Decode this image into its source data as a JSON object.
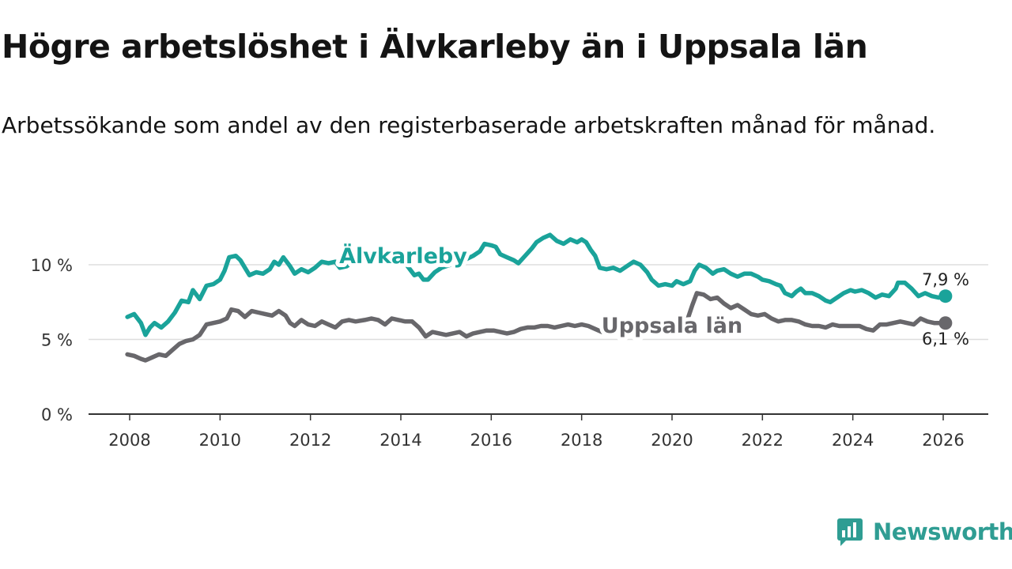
{
  "title": "Högre arbetslöshet i Älvkarleby än i Uppsala län",
  "subtitle": "Arbetssökande som andel av den registerbaserade arbetskraften månad för månad.",
  "brand": {
    "name": "Newsworthy",
    "icon": "newsworthy-logo-icon"
  },
  "colors": {
    "alvkarleby": "#1aa39a",
    "uppsala": "#68676b",
    "grid": "#dddddd",
    "axis": "#333333"
  },
  "chart_data": {
    "type": "line",
    "xlim": [
      2008,
      2026.2
    ],
    "ylim": [
      0,
      12.5
    ],
    "x_ticks": [
      2008,
      2010,
      2012,
      2014,
      2016,
      2018,
      2020,
      2022,
      2024,
      2026
    ],
    "x_tick_labels": [
      "2008",
      "2010",
      "2012",
      "2014",
      "2016",
      "2018",
      "2020",
      "2022",
      "2024",
      "2026"
    ],
    "y_ticks": [
      0,
      5,
      10
    ],
    "y_tick_labels": [
      "0 %",
      "5 %",
      "10 %"
    ],
    "grid": true,
    "series": [
      {
        "name": "Älvkarleby",
        "label": "Älvkarleby",
        "end_label": "7,9 %",
        "points": [
          [
            2007.95,
            6.5
          ],
          [
            2008.1,
            6.7
          ],
          [
            2008.25,
            6.1
          ],
          [
            2008.35,
            5.3
          ],
          [
            2008.45,
            5.8
          ],
          [
            2008.55,
            6.1
          ],
          [
            2008.7,
            5.8
          ],
          [
            2008.85,
            6.2
          ],
          [
            2009.0,
            6.8
          ],
          [
            2009.15,
            7.6
          ],
          [
            2009.3,
            7.5
          ],
          [
            2009.4,
            8.3
          ],
          [
            2009.55,
            7.7
          ],
          [
            2009.7,
            8.6
          ],
          [
            2009.85,
            8.7
          ],
          [
            2010.0,
            9.0
          ],
          [
            2010.1,
            9.6
          ],
          [
            2010.2,
            10.5
          ],
          [
            2010.35,
            10.6
          ],
          [
            2010.45,
            10.3
          ],
          [
            2010.55,
            9.8
          ],
          [
            2010.65,
            9.3
          ],
          [
            2010.8,
            9.5
          ],
          [
            2010.95,
            9.4
          ],
          [
            2011.1,
            9.7
          ],
          [
            2011.2,
            10.2
          ],
          [
            2011.3,
            10.0
          ],
          [
            2011.4,
            10.5
          ],
          [
            2011.55,
            9.9
          ],
          [
            2011.65,
            9.4
          ],
          [
            2011.8,
            9.7
          ],
          [
            2011.95,
            9.5
          ],
          [
            2012.1,
            9.8
          ],
          [
            2012.25,
            10.2
          ],
          [
            2012.4,
            10.1
          ],
          [
            2012.55,
            10.2
          ],
          [
            2012.65,
            9.8
          ],
          [
            2012.8,
            9.9
          ],
          [
            2013.0,
            10.3
          ],
          [
            2013.3,
            10.1
          ],
          [
            2013.6,
            10.2
          ],
          [
            2013.9,
            10.0
          ],
          [
            2014.1,
            10.1
          ],
          [
            2014.2,
            9.7
          ],
          [
            2014.3,
            9.3
          ],
          [
            2014.4,
            9.4
          ],
          [
            2014.5,
            9.0
          ],
          [
            2014.6,
            9.0
          ],
          [
            2014.75,
            9.5
          ],
          [
            2014.9,
            9.8
          ],
          [
            2015.1,
            10.0
          ],
          [
            2015.4,
            10.3
          ],
          [
            2015.6,
            10.6
          ],
          [
            2015.75,
            10.9
          ],
          [
            2015.85,
            11.4
          ],
          [
            2016.0,
            11.3
          ],
          [
            2016.1,
            11.2
          ],
          [
            2016.2,
            10.7
          ],
          [
            2016.35,
            10.5
          ],
          [
            2016.5,
            10.3
          ],
          [
            2016.6,
            10.1
          ],
          [
            2016.75,
            10.6
          ],
          [
            2016.9,
            11.1
          ],
          [
            2017.0,
            11.5
          ],
          [
            2017.15,
            11.8
          ],
          [
            2017.3,
            12.0
          ],
          [
            2017.45,
            11.6
          ],
          [
            2017.6,
            11.4
          ],
          [
            2017.75,
            11.7
          ],
          [
            2017.9,
            11.5
          ],
          [
            2018.0,
            11.7
          ],
          [
            2018.1,
            11.5
          ],
          [
            2018.2,
            11.0
          ],
          [
            2018.3,
            10.6
          ],
          [
            2018.4,
            9.8
          ],
          [
            2018.55,
            9.7
          ],
          [
            2018.7,
            9.8
          ],
          [
            2018.85,
            9.6
          ],
          [
            2019.0,
            9.9
          ],
          [
            2019.15,
            10.2
          ],
          [
            2019.3,
            10.0
          ],
          [
            2019.45,
            9.5
          ],
          [
            2019.55,
            9.0
          ],
          [
            2019.7,
            8.6
          ],
          [
            2019.85,
            8.7
          ],
          [
            2020.0,
            8.6
          ],
          [
            2020.1,
            8.9
          ],
          [
            2020.25,
            8.7
          ],
          [
            2020.4,
            8.9
          ],
          [
            2020.5,
            9.6
          ],
          [
            2020.6,
            10.0
          ],
          [
            2020.75,
            9.8
          ],
          [
            2020.9,
            9.4
          ],
          [
            2021.0,
            9.6
          ],
          [
            2021.15,
            9.7
          ],
          [
            2021.3,
            9.4
          ],
          [
            2021.45,
            9.2
          ],
          [
            2021.6,
            9.4
          ],
          [
            2021.75,
            9.4
          ],
          [
            2021.9,
            9.2
          ],
          [
            2022.0,
            9.0
          ],
          [
            2022.15,
            8.9
          ],
          [
            2022.3,
            8.7
          ],
          [
            2022.4,
            8.6
          ],
          [
            2022.5,
            8.1
          ],
          [
            2022.65,
            7.9
          ],
          [
            2022.75,
            8.2
          ],
          [
            2022.85,
            8.4
          ],
          [
            2022.95,
            8.1
          ],
          [
            2023.1,
            8.1
          ],
          [
            2023.25,
            7.9
          ],
          [
            2023.4,
            7.6
          ],
          [
            2023.5,
            7.5
          ],
          [
            2023.65,
            7.8
          ],
          [
            2023.8,
            8.1
          ],
          [
            2023.95,
            8.3
          ],
          [
            2024.05,
            8.2
          ],
          [
            2024.2,
            8.3
          ],
          [
            2024.35,
            8.1
          ],
          [
            2024.5,
            7.8
          ],
          [
            2024.65,
            8.0
          ],
          [
            2024.8,
            7.9
          ],
          [
            2024.95,
            8.4
          ],
          [
            2025.0,
            8.8
          ],
          [
            2025.15,
            8.8
          ],
          [
            2025.3,
            8.4
          ],
          [
            2025.45,
            7.9
          ],
          [
            2025.6,
            8.1
          ],
          [
            2025.75,
            7.9
          ],
          [
            2025.9,
            7.8
          ],
          [
            2026.05,
            7.9
          ]
        ]
      },
      {
        "name": "Uppsala län",
        "label": "Uppsala län",
        "end_label": "6,1 %",
        "points": [
          [
            2007.95,
            4.0
          ],
          [
            2008.1,
            3.9
          ],
          [
            2008.25,
            3.7
          ],
          [
            2008.35,
            3.6
          ],
          [
            2008.5,
            3.8
          ],
          [
            2008.65,
            4.0
          ],
          [
            2008.8,
            3.9
          ],
          [
            2008.95,
            4.3
          ],
          [
            2009.1,
            4.7
          ],
          [
            2009.25,
            4.9
          ],
          [
            2009.4,
            5.0
          ],
          [
            2009.55,
            5.3
          ],
          [
            2009.7,
            6.0
          ],
          [
            2009.85,
            6.1
          ],
          [
            2010.0,
            6.2
          ],
          [
            2010.15,
            6.4
          ],
          [
            2010.25,
            7.0
          ],
          [
            2010.4,
            6.9
          ],
          [
            2010.55,
            6.5
          ],
          [
            2010.7,
            6.9
          ],
          [
            2010.85,
            6.8
          ],
          [
            2011.0,
            6.7
          ],
          [
            2011.15,
            6.6
          ],
          [
            2011.3,
            6.9
          ],
          [
            2011.45,
            6.6
          ],
          [
            2011.55,
            6.1
          ],
          [
            2011.65,
            5.9
          ],
          [
            2011.8,
            6.3
          ],
          [
            2011.95,
            6.0
          ],
          [
            2012.1,
            5.9
          ],
          [
            2012.25,
            6.2
          ],
          [
            2012.4,
            6.0
          ],
          [
            2012.55,
            5.8
          ],
          [
            2012.7,
            6.2
          ],
          [
            2012.85,
            6.3
          ],
          [
            2013.0,
            6.2
          ],
          [
            2013.2,
            6.3
          ],
          [
            2013.35,
            6.4
          ],
          [
            2013.5,
            6.3
          ],
          [
            2013.65,
            6.0
          ],
          [
            2013.8,
            6.4
          ],
          [
            2013.95,
            6.3
          ],
          [
            2014.1,
            6.2
          ],
          [
            2014.25,
            6.2
          ],
          [
            2014.4,
            5.8
          ],
          [
            2014.55,
            5.2
          ],
          [
            2014.7,
            5.5
          ],
          [
            2014.85,
            5.4
          ],
          [
            2015.0,
            5.3
          ],
          [
            2015.15,
            5.4
          ],
          [
            2015.3,
            5.5
          ],
          [
            2015.45,
            5.2
          ],
          [
            2015.6,
            5.4
          ],
          [
            2015.75,
            5.5
          ],
          [
            2015.9,
            5.6
          ],
          [
            2016.05,
            5.6
          ],
          [
            2016.2,
            5.5
          ],
          [
            2016.35,
            5.4
          ],
          [
            2016.5,
            5.5
          ],
          [
            2016.65,
            5.7
          ],
          [
            2016.8,
            5.8
          ],
          [
            2016.95,
            5.8
          ],
          [
            2017.1,
            5.9
          ],
          [
            2017.25,
            5.9
          ],
          [
            2017.4,
            5.8
          ],
          [
            2017.55,
            5.9
          ],
          [
            2017.7,
            6.0
          ],
          [
            2017.85,
            5.9
          ],
          [
            2018.0,
            6.0
          ],
          [
            2018.15,
            5.9
          ],
          [
            2018.3,
            5.7
          ],
          [
            2018.45,
            5.5
          ],
          [
            2018.6,
            5.6
          ],
          [
            2018.8,
            5.5
          ],
          [
            2019.0,
            5.5
          ],
          [
            2019.3,
            5.4
          ],
          [
            2019.6,
            5.5
          ],
          [
            2019.9,
            5.6
          ],
          [
            2020.2,
            5.8
          ],
          [
            2020.35,
            6.4
          ],
          [
            2020.45,
            7.3
          ],
          [
            2020.55,
            8.1
          ],
          [
            2020.7,
            8.0
          ],
          [
            2020.85,
            7.7
          ],
          [
            2021.0,
            7.8
          ],
          [
            2021.15,
            7.4
          ],
          [
            2021.3,
            7.1
          ],
          [
            2021.45,
            7.3
          ],
          [
            2021.6,
            7.0
          ],
          [
            2021.75,
            6.7
          ],
          [
            2021.9,
            6.6
          ],
          [
            2022.05,
            6.7
          ],
          [
            2022.2,
            6.4
          ],
          [
            2022.35,
            6.2
          ],
          [
            2022.5,
            6.3
          ],
          [
            2022.65,
            6.3
          ],
          [
            2022.8,
            6.2
          ],
          [
            2022.95,
            6.0
          ],
          [
            2023.1,
            5.9
          ],
          [
            2023.25,
            5.9
          ],
          [
            2023.4,
            5.8
          ],
          [
            2023.55,
            6.0
          ],
          [
            2023.7,
            5.9
          ],
          [
            2023.85,
            5.9
          ],
          [
            2024.0,
            5.9
          ],
          [
            2024.15,
            5.9
          ],
          [
            2024.3,
            5.7
          ],
          [
            2024.45,
            5.6
          ],
          [
            2024.6,
            6.0
          ],
          [
            2024.75,
            6.0
          ],
          [
            2024.9,
            6.1
          ],
          [
            2025.05,
            6.2
          ],
          [
            2025.2,
            6.1
          ],
          [
            2025.35,
            6.0
          ],
          [
            2025.5,
            6.4
          ],
          [
            2025.65,
            6.2
          ],
          [
            2025.8,
            6.1
          ],
          [
            2025.95,
            6.1
          ],
          [
            2026.05,
            6.1
          ]
        ]
      }
    ]
  }
}
